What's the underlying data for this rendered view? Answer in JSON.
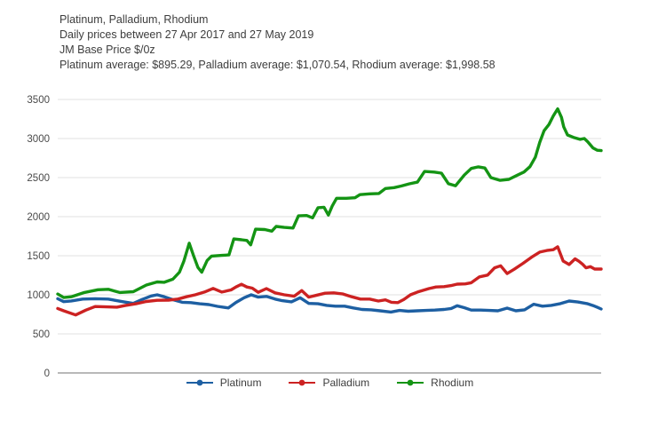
{
  "header": {
    "line1": "Platinum, Palladium, Rhodium",
    "line2": "Daily prices between 27 Apr 2017 and 27 May 2019",
    "line3": "JM Base Price $/0z",
    "line4": "Platinum average: $895.29, Palladium average: $1,070.54, Rhodium average: $1,998.58"
  },
  "colors": {
    "grid": "#e2e2e2",
    "axis": "#a0a0a0",
    "tick_text": "#4a4a4a",
    "title_text": "#3d3d3d",
    "platinum": "#1d5fa2",
    "palladium": "#cc2222",
    "rhodium": "#149414"
  },
  "chart_data": {
    "type": "line",
    "title": "Platinum, Palladium, Rhodium",
    "subtitle": "Daily prices between 27 Apr 2017 and 27 May 2019",
    "ylabel": "JM Base Price $/0z",
    "xlabel": "",
    "x_range": [
      "27 Apr 2017",
      "27 May 2019"
    ],
    "x_unit": "fraction_of_date_range",
    "ylim": [
      0,
      3500
    ],
    "y_ticks": [
      0,
      500,
      1000,
      1500,
      2000,
      2500,
      3000,
      3500
    ],
    "grid": "horizontal",
    "legend_position": "bottom",
    "averages": {
      "Platinum": 895.29,
      "Palladium": 1070.54,
      "Rhodium": 1998.58
    },
    "series": [
      {
        "name": "Platinum",
        "color": "#1d5fa2",
        "points": [
          [
            0,
            950
          ],
          [
            0.011,
            912
          ],
          [
            0.025,
            922
          ],
          [
            0.046,
            945
          ],
          [
            0.069,
            950
          ],
          [
            0.093,
            945
          ],
          [
            0.119,
            912
          ],
          [
            0.139,
            890
          ],
          [
            0.155,
            940
          ],
          [
            0.172,
            985
          ],
          [
            0.183,
            1000
          ],
          [
            0.196,
            975
          ],
          [
            0.212,
            938
          ],
          [
            0.229,
            905
          ],
          [
            0.245,
            900
          ],
          [
            0.261,
            885
          ],
          [
            0.278,
            875
          ],
          [
            0.294,
            852
          ],
          [
            0.314,
            832
          ],
          [
            0.328,
            902
          ],
          [
            0.343,
            962
          ],
          [
            0.356,
            1000
          ],
          [
            0.369,
            970
          ],
          [
            0.384,
            980
          ],
          [
            0.4,
            945
          ],
          [
            0.413,
            925
          ],
          [
            0.43,
            910
          ],
          [
            0.446,
            962
          ],
          [
            0.462,
            890
          ],
          [
            0.479,
            885
          ],
          [
            0.495,
            865
          ],
          [
            0.511,
            855
          ],
          [
            0.528,
            855
          ],
          [
            0.544,
            832
          ],
          [
            0.56,
            812
          ],
          [
            0.577,
            808
          ],
          [
            0.593,
            795
          ],
          [
            0.613,
            780
          ],
          [
            0.629,
            800
          ],
          [
            0.645,
            790
          ],
          [
            0.662,
            795
          ],
          [
            0.678,
            800
          ],
          [
            0.694,
            805
          ],
          [
            0.711,
            812
          ],
          [
            0.724,
            825
          ],
          [
            0.735,
            860
          ],
          [
            0.748,
            835
          ],
          [
            0.761,
            805
          ],
          [
            0.778,
            805
          ],
          [
            0.794,
            800
          ],
          [
            0.81,
            795
          ],
          [
            0.827,
            830
          ],
          [
            0.843,
            795
          ],
          [
            0.859,
            808
          ],
          [
            0.876,
            880
          ],
          [
            0.892,
            855
          ],
          [
            0.908,
            865
          ],
          [
            0.925,
            888
          ],
          [
            0.941,
            920
          ],
          [
            0.957,
            908
          ],
          [
            0.974,
            888
          ],
          [
            0.985,
            862
          ],
          [
            0.993,
            840
          ],
          [
            1,
            818
          ]
        ]
      },
      {
        "name": "Palladium",
        "color": "#cc2222",
        "points": [
          [
            0,
            825
          ],
          [
            0.011,
            795
          ],
          [
            0.033,
            742
          ],
          [
            0.052,
            805
          ],
          [
            0.069,
            850
          ],
          [
            0.09,
            845
          ],
          [
            0.109,
            842
          ],
          [
            0.124,
            862
          ],
          [
            0.144,
            885
          ],
          [
            0.163,
            915
          ],
          [
            0.183,
            930
          ],
          [
            0.204,
            932
          ],
          [
            0.221,
            945
          ],
          [
            0.237,
            975
          ],
          [
            0.253,
            1000
          ],
          [
            0.27,
            1035
          ],
          [
            0.286,
            1082
          ],
          [
            0.302,
            1035
          ],
          [
            0.319,
            1062
          ],
          [
            0.328,
            1100
          ],
          [
            0.338,
            1135
          ],
          [
            0.348,
            1100
          ],
          [
            0.358,
            1085
          ],
          [
            0.369,
            1032
          ],
          [
            0.384,
            1080
          ],
          [
            0.4,
            1025
          ],
          [
            0.417,
            1000
          ],
          [
            0.435,
            982
          ],
          [
            0.449,
            1055
          ],
          [
            0.462,
            970
          ],
          [
            0.475,
            992
          ],
          [
            0.492,
            1020
          ],
          [
            0.508,
            1025
          ],
          [
            0.525,
            1010
          ],
          [
            0.541,
            975
          ],
          [
            0.557,
            945
          ],
          [
            0.574,
            945
          ],
          [
            0.59,
            920
          ],
          [
            0.603,
            935
          ],
          [
            0.614,
            905
          ],
          [
            0.626,
            900
          ],
          [
            0.637,
            940
          ],
          [
            0.649,
            1000
          ],
          [
            0.662,
            1035
          ],
          [
            0.683,
            1080
          ],
          [
            0.696,
            1100
          ],
          [
            0.711,
            1105
          ],
          [
            0.724,
            1118
          ],
          [
            0.735,
            1136
          ],
          [
            0.75,
            1140
          ],
          [
            0.761,
            1155
          ],
          [
            0.776,
            1230
          ],
          [
            0.791,
            1252
          ],
          [
            0.804,
            1345
          ],
          [
            0.815,
            1372
          ],
          [
            0.827,
            1272
          ],
          [
            0.84,
            1327
          ],
          [
            0.856,
            1402
          ],
          [
            0.872,
            1482
          ],
          [
            0.887,
            1547
          ],
          [
            0.9,
            1567
          ],
          [
            0.912,
            1577
          ],
          [
            0.92,
            1615
          ],
          [
            0.93,
            1432
          ],
          [
            0.941,
            1387
          ],
          [
            0.952,
            1460
          ],
          [
            0.959,
            1430
          ],
          [
            0.966,
            1390
          ],
          [
            0.972,
            1345
          ],
          [
            0.98,
            1360
          ],
          [
            0.988,
            1330
          ],
          [
            1,
            1330
          ]
        ]
      },
      {
        "name": "Rhodium",
        "color": "#149414",
        "points": [
          [
            0,
            1010
          ],
          [
            0.011,
            965
          ],
          [
            0.025,
            975
          ],
          [
            0.049,
            1030
          ],
          [
            0.074,
            1065
          ],
          [
            0.093,
            1070
          ],
          [
            0.114,
            1030
          ],
          [
            0.139,
            1040
          ],
          [
            0.163,
            1125
          ],
          [
            0.183,
            1165
          ],
          [
            0.196,
            1160
          ],
          [
            0.212,
            1200
          ],
          [
            0.224,
            1290
          ],
          [
            0.232,
            1430
          ],
          [
            0.242,
            1660
          ],
          [
            0.25,
            1500
          ],
          [
            0.258,
            1350
          ],
          [
            0.265,
            1290
          ],
          [
            0.275,
            1440
          ],
          [
            0.283,
            1495
          ],
          [
            0.302,
            1505
          ],
          [
            0.315,
            1510
          ],
          [
            0.324,
            1715
          ],
          [
            0.338,
            1705
          ],
          [
            0.348,
            1695
          ],
          [
            0.355,
            1640
          ],
          [
            0.364,
            1840
          ],
          [
            0.381,
            1835
          ],
          [
            0.394,
            1815
          ],
          [
            0.402,
            1875
          ],
          [
            0.417,
            1862
          ],
          [
            0.433,
            1855
          ],
          [
            0.443,
            2010
          ],
          [
            0.458,
            2015
          ],
          [
            0.469,
            1985
          ],
          [
            0.479,
            2115
          ],
          [
            0.49,
            2120
          ],
          [
            0.498,
            2020
          ],
          [
            0.505,
            2135
          ],
          [
            0.513,
            2235
          ],
          [
            0.531,
            2235
          ],
          [
            0.547,
            2242
          ],
          [
            0.556,
            2282
          ],
          [
            0.574,
            2292
          ],
          [
            0.591,
            2297
          ],
          [
            0.603,
            2360
          ],
          [
            0.619,
            2372
          ],
          [
            0.632,
            2392
          ],
          [
            0.647,
            2420
          ],
          [
            0.662,
            2442
          ],
          [
            0.675,
            2578
          ],
          [
            0.693,
            2570
          ],
          [
            0.706,
            2557
          ],
          [
            0.719,
            2422
          ],
          [
            0.732,
            2395
          ],
          [
            0.748,
            2532
          ],
          [
            0.761,
            2617
          ],
          [
            0.774,
            2637
          ],
          [
            0.786,
            2623
          ],
          [
            0.797,
            2500
          ],
          [
            0.814,
            2465
          ],
          [
            0.83,
            2477
          ],
          [
            0.846,
            2532
          ],
          [
            0.858,
            2572
          ],
          [
            0.869,
            2640
          ],
          [
            0.879,
            2762
          ],
          [
            0.887,
            2950
          ],
          [
            0.895,
            3100
          ],
          [
            0.904,
            3180
          ],
          [
            0.912,
            3290
          ],
          [
            0.92,
            3380
          ],
          [
            0.927,
            3270
          ],
          [
            0.931,
            3150
          ],
          [
            0.938,
            3045
          ],
          [
            0.949,
            3015
          ],
          [
            0.961,
            2990
          ],
          [
            0.969,
            3000
          ],
          [
            0.975,
            2960
          ],
          [
            0.985,
            2880
          ],
          [
            0.993,
            2850
          ],
          [
            1,
            2845
          ]
        ]
      }
    ]
  }
}
